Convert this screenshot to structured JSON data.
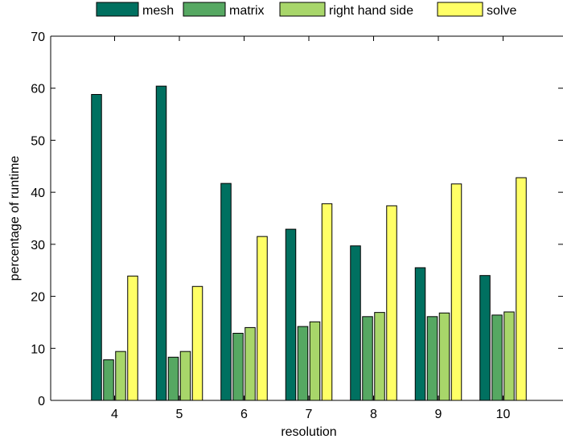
{
  "chart_data": {
    "type": "bar",
    "title": "",
    "xlabel": "resolution",
    "ylabel": "percentage of runtime",
    "categories": [
      "4",
      "5",
      "6",
      "7",
      "8",
      "9",
      "10"
    ],
    "ylim": [
      0,
      70
    ],
    "yticks": [
      0,
      10,
      20,
      30,
      40,
      50,
      60,
      70
    ],
    "grid": false,
    "legend_position": "top",
    "series": [
      {
        "name": "mesh",
        "color": "#007060",
        "values": [
          58.8,
          60.4,
          41.7,
          32.9,
          29.7,
          25.5,
          24.0
        ]
      },
      {
        "name": "matrix",
        "color": "#56a862",
        "values": [
          7.8,
          8.3,
          12.9,
          14.2,
          16.1,
          16.1,
          16.4
        ]
      },
      {
        "name": "right hand side",
        "color": "#a8d66a",
        "values": [
          9.4,
          9.4,
          14.0,
          15.1,
          16.9,
          16.8,
          17.0
        ]
      },
      {
        "name": "solve",
        "color": "#ffff66",
        "values": [
          23.9,
          21.9,
          31.5,
          37.8,
          37.4,
          41.6,
          42.8
        ]
      }
    ]
  }
}
